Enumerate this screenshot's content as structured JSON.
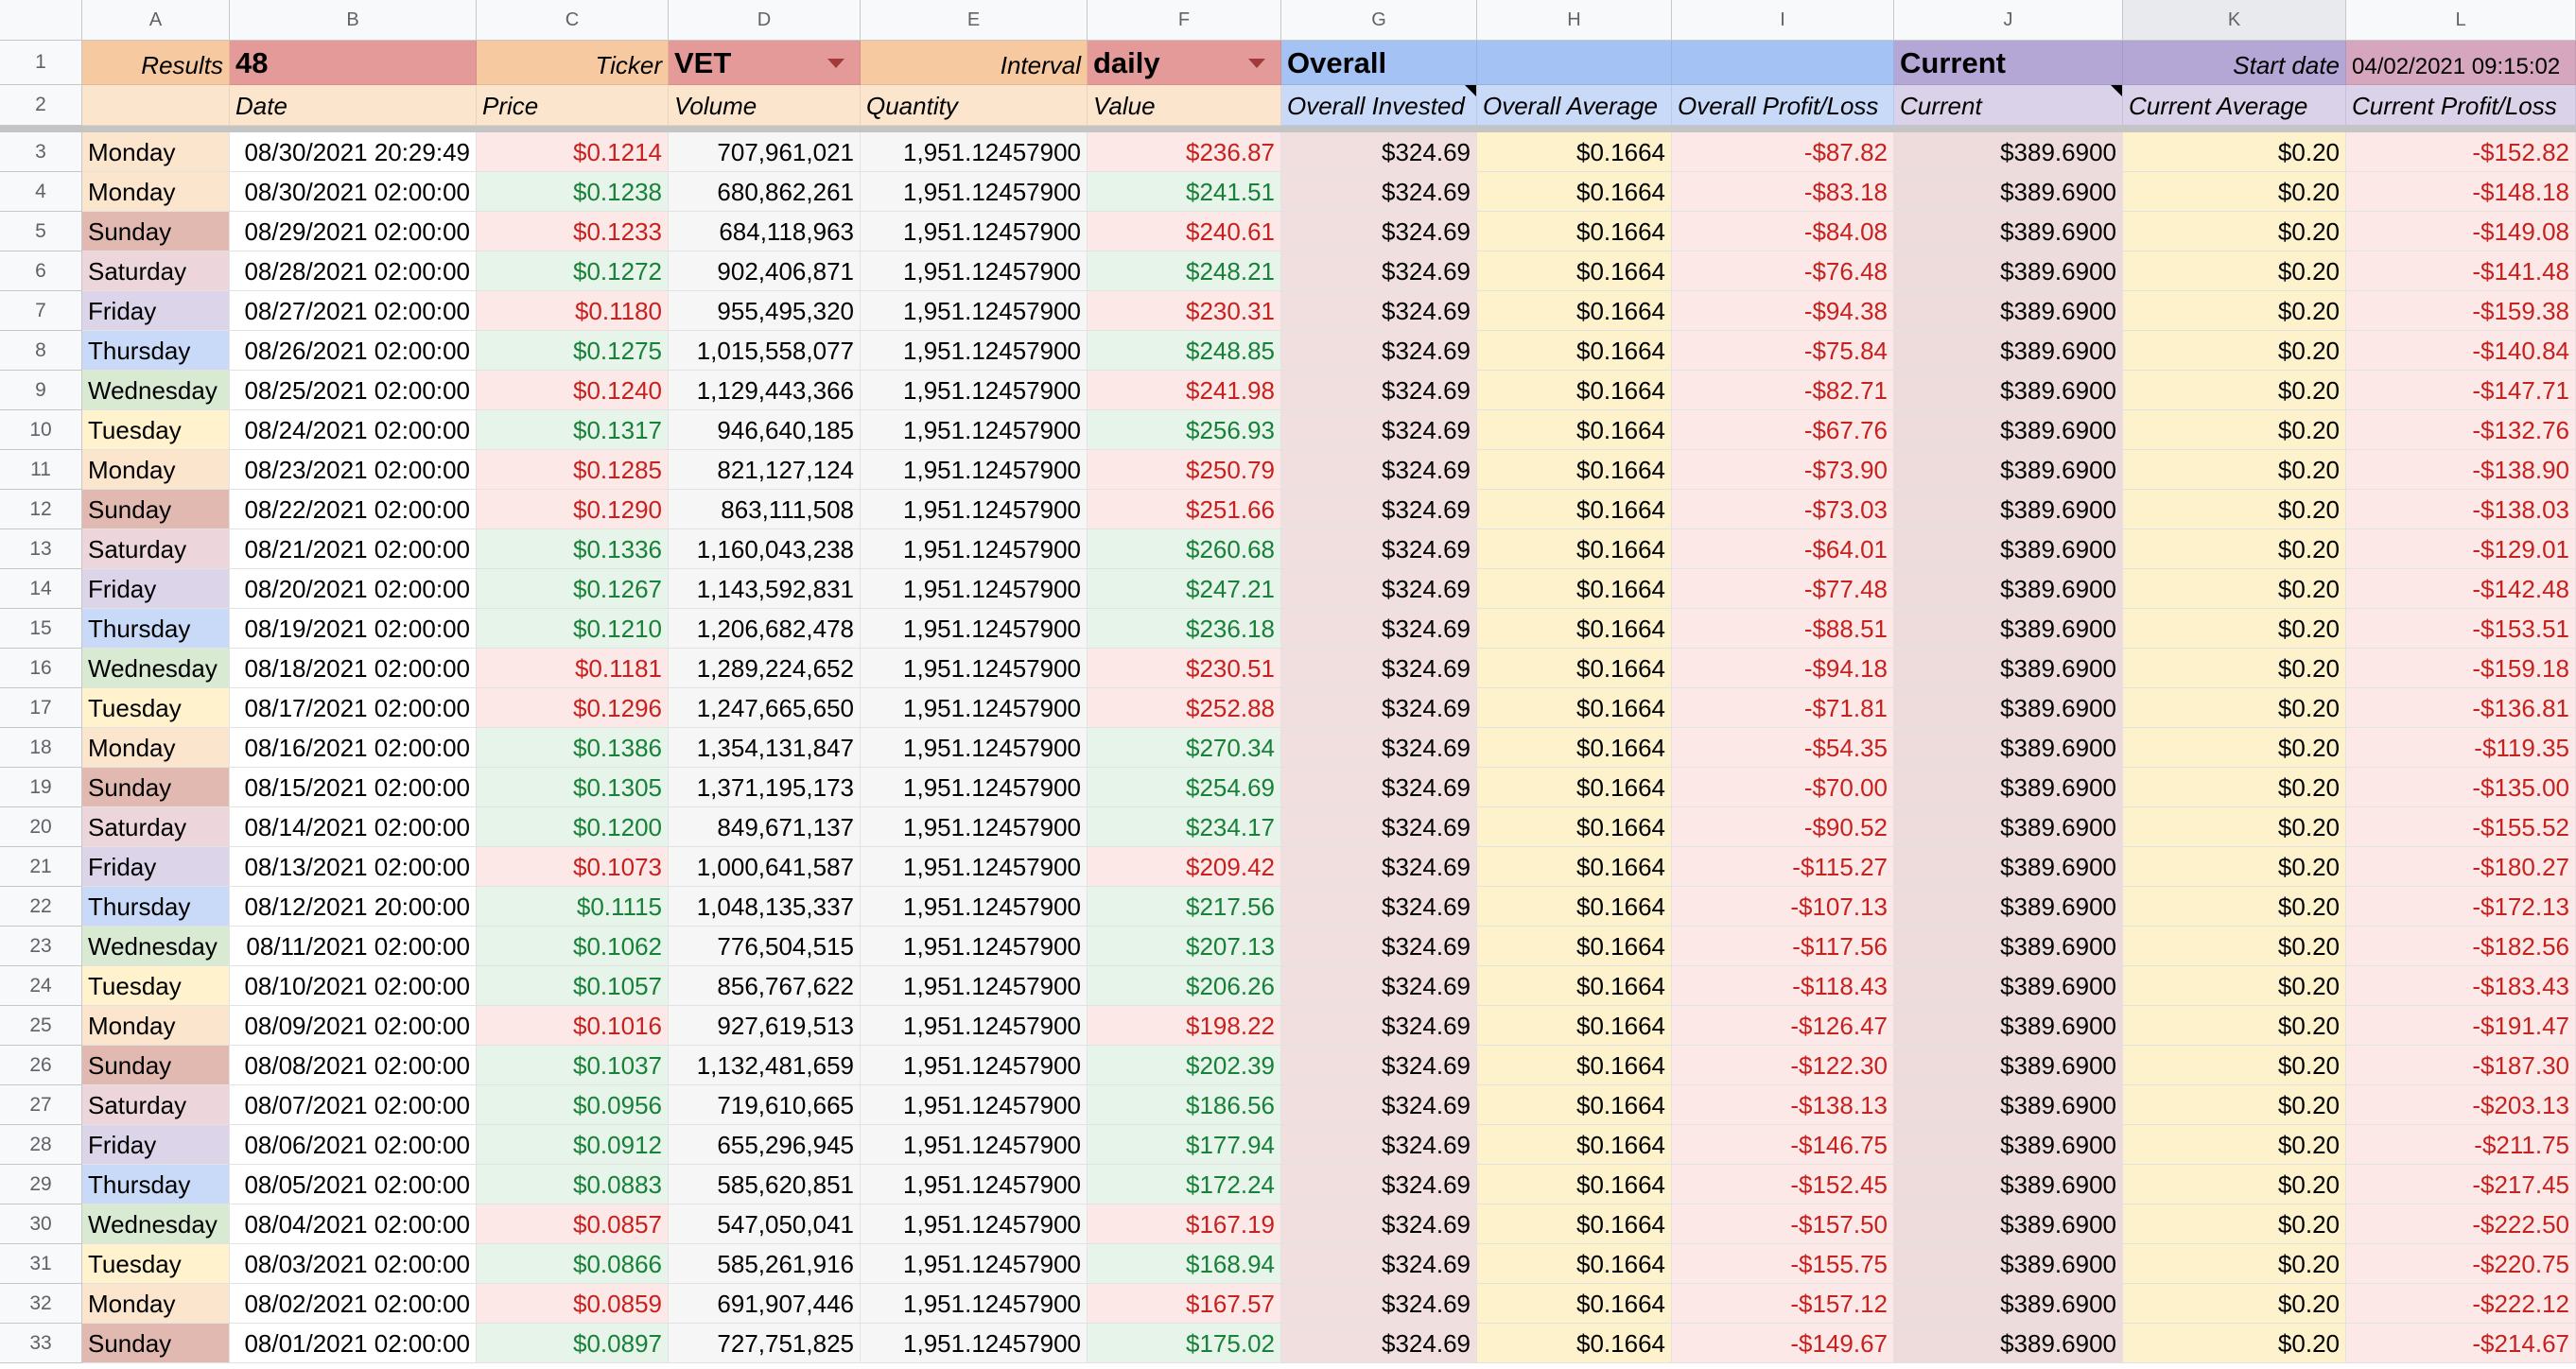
{
  "columns": [
    "A",
    "B",
    "C",
    "D",
    "E",
    "F",
    "G",
    "H",
    "I",
    "J",
    "K",
    "L"
  ],
  "row_numbers": [
    1,
    2,
    3,
    4,
    5,
    6,
    7,
    8,
    9,
    10,
    11,
    12,
    13,
    14,
    15,
    16,
    17,
    18,
    19,
    20,
    21,
    22,
    23,
    24,
    25,
    26,
    27,
    28,
    29,
    30,
    31,
    32,
    33
  ],
  "header": {
    "row1": {
      "A": "Results",
      "B": 48,
      "C": "Ticker",
      "D": "VET",
      "E": "Interval",
      "F": "daily",
      "G": "Overall",
      "J": "Current",
      "K": "Start date",
      "L": "04/02/2021 09:15:02"
    },
    "row2": {
      "B": "Date",
      "C": "Price",
      "D": "Volume",
      "E": "Quantity",
      "F": "Value",
      "G": "Overall Invested",
      "H": "Overall Average",
      "I": "Overall Profit/Loss",
      "J": "Current",
      "K": "Current Average",
      "L": "Current Profit/Loss"
    }
  },
  "rows": [
    [
      "Monday",
      "08/30/2021 20:29:49",
      "$0.1214",
      "707,961,021",
      "1,951.12457900",
      "$236.87",
      "$324.69",
      "$0.1664",
      "-$87.82",
      "$389.6900",
      "$0.20",
      "-$152.82"
    ],
    [
      "Monday",
      "08/30/2021 02:00:00",
      "$0.1238",
      "680,862,261",
      "1,951.12457900",
      "$241.51",
      "$324.69",
      "$0.1664",
      "-$83.18",
      "$389.6900",
      "$0.20",
      "-$148.18"
    ],
    [
      "Sunday",
      "08/29/2021 02:00:00",
      "$0.1233",
      "684,118,963",
      "1,951.12457900",
      "$240.61",
      "$324.69",
      "$0.1664",
      "-$84.08",
      "$389.6900",
      "$0.20",
      "-$149.08"
    ],
    [
      "Saturday",
      "08/28/2021 02:00:00",
      "$0.1272",
      "902,406,871",
      "1,951.12457900",
      "$248.21",
      "$324.69",
      "$0.1664",
      "-$76.48",
      "$389.6900",
      "$0.20",
      "-$141.48"
    ],
    [
      "Friday",
      "08/27/2021 02:00:00",
      "$0.1180",
      "955,495,320",
      "1,951.12457900",
      "$230.31",
      "$324.69",
      "$0.1664",
      "-$94.38",
      "$389.6900",
      "$0.20",
      "-$159.38"
    ],
    [
      "Thursday",
      "08/26/2021 02:00:00",
      "$0.1275",
      "1,015,558,077",
      "1,951.12457900",
      "$248.85",
      "$324.69",
      "$0.1664",
      "-$75.84",
      "$389.6900",
      "$0.20",
      "-$140.84"
    ],
    [
      "Wednesday",
      "08/25/2021 02:00:00",
      "$0.1240",
      "1,129,443,366",
      "1,951.12457900",
      "$241.98",
      "$324.69",
      "$0.1664",
      "-$82.71",
      "$389.6900",
      "$0.20",
      "-$147.71"
    ],
    [
      "Tuesday",
      "08/24/2021 02:00:00",
      "$0.1317",
      "946,640,185",
      "1,951.12457900",
      "$256.93",
      "$324.69",
      "$0.1664",
      "-$67.76",
      "$389.6900",
      "$0.20",
      "-$132.76"
    ],
    [
      "Monday",
      "08/23/2021 02:00:00",
      "$0.1285",
      "821,127,124",
      "1,951.12457900",
      "$250.79",
      "$324.69",
      "$0.1664",
      "-$73.90",
      "$389.6900",
      "$0.20",
      "-$138.90"
    ],
    [
      "Sunday",
      "08/22/2021 02:00:00",
      "$0.1290",
      "863,111,508",
      "1,951.12457900",
      "$251.66",
      "$324.69",
      "$0.1664",
      "-$73.03",
      "$389.6900",
      "$0.20",
      "-$138.03"
    ],
    [
      "Saturday",
      "08/21/2021 02:00:00",
      "$0.1336",
      "1,160,043,238",
      "1,951.12457900",
      "$260.68",
      "$324.69",
      "$0.1664",
      "-$64.01",
      "$389.6900",
      "$0.20",
      "-$129.01"
    ],
    [
      "Friday",
      "08/20/2021 02:00:00",
      "$0.1267",
      "1,143,592,831",
      "1,951.12457900",
      "$247.21",
      "$324.69",
      "$0.1664",
      "-$77.48",
      "$389.6900",
      "$0.20",
      "-$142.48"
    ],
    [
      "Thursday",
      "08/19/2021 02:00:00",
      "$0.1210",
      "1,206,682,478",
      "1,951.12457900",
      "$236.18",
      "$324.69",
      "$0.1664",
      "-$88.51",
      "$389.6900",
      "$0.20",
      "-$153.51"
    ],
    [
      "Wednesday",
      "08/18/2021 02:00:00",
      "$0.1181",
      "1,289,224,652",
      "1,951.12457900",
      "$230.51",
      "$324.69",
      "$0.1664",
      "-$94.18",
      "$389.6900",
      "$0.20",
      "-$159.18"
    ],
    [
      "Tuesday",
      "08/17/2021 02:00:00",
      "$0.1296",
      "1,247,665,650",
      "1,951.12457900",
      "$252.88",
      "$324.69",
      "$0.1664",
      "-$71.81",
      "$389.6900",
      "$0.20",
      "-$136.81"
    ],
    [
      "Monday",
      "08/16/2021 02:00:00",
      "$0.1386",
      "1,354,131,847",
      "1,951.12457900",
      "$270.34",
      "$324.69",
      "$0.1664",
      "-$54.35",
      "$389.6900",
      "$0.20",
      "-$119.35"
    ],
    [
      "Sunday",
      "08/15/2021 02:00:00",
      "$0.1305",
      "1,371,195,173",
      "1,951.12457900",
      "$254.69",
      "$324.69",
      "$0.1664",
      "-$70.00",
      "$389.6900",
      "$0.20",
      "-$135.00"
    ],
    [
      "Saturday",
      "08/14/2021 02:00:00",
      "$0.1200",
      "849,671,137",
      "1,951.12457900",
      "$234.17",
      "$324.69",
      "$0.1664",
      "-$90.52",
      "$389.6900",
      "$0.20",
      "-$155.52"
    ],
    [
      "Friday",
      "08/13/2021 02:00:00",
      "$0.1073",
      "1,000,641,587",
      "1,951.12457900",
      "$209.42",
      "$324.69",
      "$0.1664",
      "-$115.27",
      "$389.6900",
      "$0.20",
      "-$180.27"
    ],
    [
      "Thursday",
      "08/12/2021 20:00:00",
      "$0.1115",
      "1,048,135,337",
      "1,951.12457900",
      "$217.56",
      "$324.69",
      "$0.1664",
      "-$107.13",
      "$389.6900",
      "$0.20",
      "-$172.13"
    ],
    [
      "Wednesday",
      "08/11/2021 02:00:00",
      "$0.1062",
      "776,504,515",
      "1,951.12457900",
      "$207.13",
      "$324.69",
      "$0.1664",
      "-$117.56",
      "$389.6900",
      "$0.20",
      "-$182.56"
    ],
    [
      "Tuesday",
      "08/10/2021 02:00:00",
      "$0.1057",
      "856,767,622",
      "1,951.12457900",
      "$206.26",
      "$324.69",
      "$0.1664",
      "-$118.43",
      "$389.6900",
      "$0.20",
      "-$183.43"
    ],
    [
      "Monday",
      "08/09/2021 02:00:00",
      "$0.1016",
      "927,619,513",
      "1,951.12457900",
      "$198.22",
      "$324.69",
      "$0.1664",
      "-$126.47",
      "$389.6900",
      "$0.20",
      "-$191.47"
    ],
    [
      "Sunday",
      "08/08/2021 02:00:00",
      "$0.1037",
      "1,132,481,659",
      "1,951.12457900",
      "$202.39",
      "$324.69",
      "$0.1664",
      "-$122.30",
      "$389.6900",
      "$0.20",
      "-$187.30"
    ],
    [
      "Saturday",
      "08/07/2021 02:00:00",
      "$0.0956",
      "719,610,665",
      "1,951.12457900",
      "$186.56",
      "$324.69",
      "$0.1664",
      "-$138.13",
      "$389.6900",
      "$0.20",
      "-$203.13"
    ],
    [
      "Friday",
      "08/06/2021 02:00:00",
      "$0.0912",
      "655,296,945",
      "1,951.12457900",
      "$177.94",
      "$324.69",
      "$0.1664",
      "-$146.75",
      "$389.6900",
      "$0.20",
      "-$211.75"
    ],
    [
      "Thursday",
      "08/05/2021 02:00:00",
      "$0.0883",
      "585,620,851",
      "1,951.12457900",
      "$172.24",
      "$324.69",
      "$0.1664",
      "-$152.45",
      "$389.6900",
      "$0.20",
      "-$217.45"
    ],
    [
      "Wednesday",
      "08/04/2021 02:00:00",
      "$0.0857",
      "547,050,041",
      "1,951.12457900",
      "$167.19",
      "$324.69",
      "$0.1664",
      "-$157.50",
      "$389.6900",
      "$0.20",
      "-$222.50"
    ],
    [
      "Tuesday",
      "08/03/2021 02:00:00",
      "$0.0866",
      "585,261,916",
      "1,951.12457900",
      "$168.94",
      "$324.69",
      "$0.1664",
      "-$155.75",
      "$389.6900",
      "$0.20",
      "-$220.75"
    ],
    [
      "Monday",
      "08/02/2021 02:00:00",
      "$0.0859",
      "691,907,446",
      "1,951.12457900",
      "$167.57",
      "$324.69",
      "$0.1664",
      "-$157.12",
      "$389.6900",
      "$0.20",
      "-$222.12"
    ],
    [
      "Sunday",
      "08/01/2021 02:00:00",
      "$0.0897",
      "727,751,825",
      "1,951.12457900",
      "$175.02",
      "$324.69",
      "$0.1664",
      "-$149.67",
      "$389.6900",
      "$0.20",
      "-$214.67"
    ]
  ],
  "day_colors": [
    "#fce5cd",
    "#fce5cd",
    "#e2b9b1",
    "#ecd6dc",
    "#dcd5ea",
    "#c9daf8",
    "#d9ead3",
    "#fff2cc",
    "#fce5cd",
    "#e2b9b1",
    "#ecd6dc",
    "#dcd5ea",
    "#c9daf8",
    "#d9ead3",
    "#fff2cc",
    "#fce5cd",
    "#e2b9b1",
    "#ecd6dc",
    "#dcd5ea",
    "#c9daf8",
    "#d9ead3",
    "#fff2cc",
    "#fce5cd",
    "#e2b9b1",
    "#ecd6dc",
    "#dcd5ea",
    "#c9daf8",
    "#d9ead3",
    "#fff2cc",
    "#fce5cd",
    "#e2b9b1"
  ]
}
